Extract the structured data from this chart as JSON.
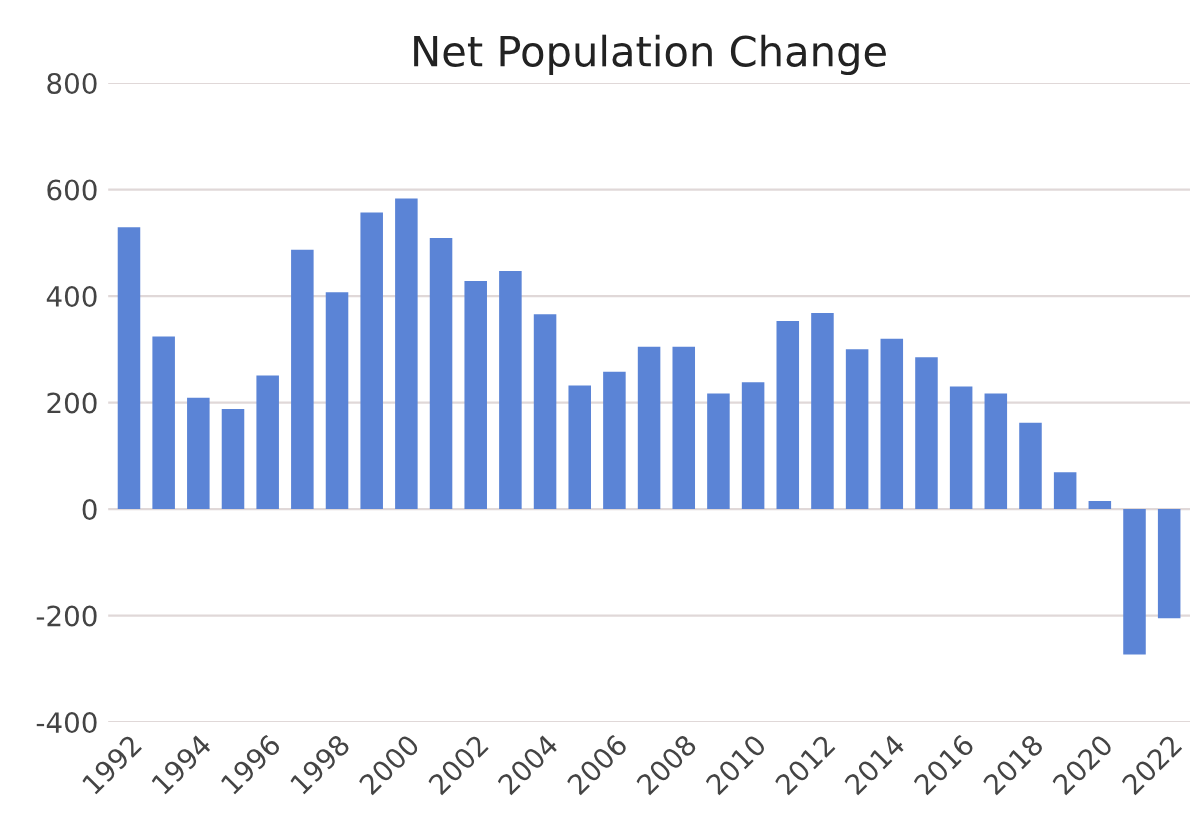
{
  "chart_data": {
    "type": "bar",
    "title": "Net Population Change",
    "categories": [
      "1992",
      null,
      "1994",
      null,
      "1996",
      null,
      "1998",
      null,
      "2000",
      null,
      "2002",
      null,
      "2004",
      null,
      "2006",
      null,
      "2008",
      null,
      "2010",
      null,
      "2012",
      null,
      "2014",
      null,
      "2016",
      null,
      "2018",
      null,
      "2020",
      null,
      "2022"
    ],
    "values": [
      529,
      324,
      209,
      188,
      251,
      487,
      407,
      557,
      583,
      509,
      428,
      447,
      366,
      232,
      258,
      305,
      305,
      217,
      238,
      353,
      368,
      300,
      320,
      285,
      230,
      217,
      162,
      69,
      15,
      -273,
      -205
    ],
    "color": "#5b84d6",
    "ylim": [
      -400,
      800
    ],
    "yticks": [
      -400,
      -200,
      0,
      200,
      400,
      600,
      800
    ],
    "grid": "y"
  }
}
